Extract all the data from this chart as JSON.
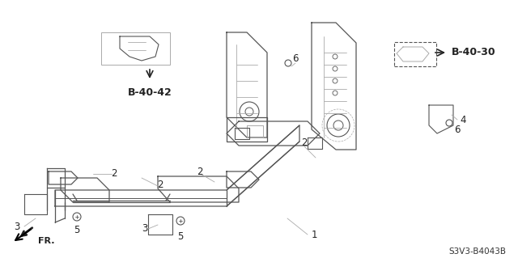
{
  "bg_color": "#ffffff",
  "line_color": "#555555",
  "dark_color": "#222222",
  "light_gray": "#aaaaaa",
  "diagram_code": "S3V3-B4043B",
  "ref_b4042": "B-40-42",
  "ref_b4030": "B-40-30",
  "fr_label": "FR.",
  "part_numbers": {
    "1": [
      1
    ],
    "2": [
      2
    ],
    "3": [
      3
    ],
    "4": [
      4
    ],
    "5": [
      5
    ],
    "6": [
      6
    ]
  },
  "title_fontsize": 9,
  "label_fontsize": 8.5,
  "small_fontsize": 7.5
}
